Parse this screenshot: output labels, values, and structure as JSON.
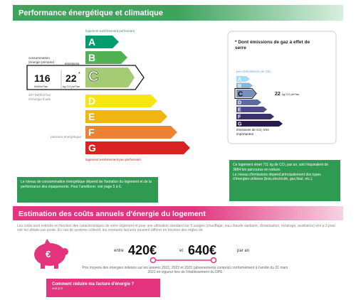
{
  "header": {
    "title": "Performance énergétique et climatique"
  },
  "energy_label": {
    "top_note": "logement extrêmement performant",
    "bottom_note": "logement extrêmement peu performant",
    "classes": [
      "A",
      "B",
      "C",
      "D",
      "E",
      "F",
      "G"
    ],
    "consumption_label": "consommation (énergie primaire)",
    "emissions_label": "émissions",
    "consumption_value": "116",
    "consumption_unit": "kWh/m²/an",
    "emissions_value": "22",
    "emissions_marker": "*",
    "emissions_unit": "kg CO₂/m²/an",
    "final_energy": "207 kWh/m²/an d'énergie finale",
    "sieve_label": "passoire énergétique"
  },
  "ghg_label": {
    "title": "* Dont émissions de gaz à effet de serre",
    "top_note": "peu d'émissions de CO₂",
    "classes": [
      "A",
      "B",
      "C",
      "D",
      "E",
      "F",
      "G"
    ],
    "value": "22",
    "unit": "kg CO₂/m²/an",
    "bottom_note": "émissions de CO₂ très importantes"
  },
  "notes": {
    "consumption": "Le niveau de consommation énergétique dépend de l'isolation du logement et de la performance des équipements. Pour l'améliorer, voir page 5 à 6.",
    "emissions": [
      "Ce logement émet 711 kg de CO₂ par an, soit l'équivalent de 3684 km parcourus en voiture.",
      "Le niveau d'émissions dépend principalement des types d'énergies utilisées (bois,électricité, gaz,fioul, etc.)."
    ]
  },
  "costs": {
    "title": "Estimation des coûts annuels d'énergie du logement",
    "intro": "Les coûts sont estimés en fonction des caractéristiques de votre logement et pour une utilisation standard sur 5 usages (chauffage, eau chaude sanitaire, climatisation, éclairage, auxiliaires) voir p.3 pour voir les détails par poste. En cas de système collectif, les montants facturés peuvent différer en fonction des règles de",
    "icon_symbol": "€",
    "between": "entre",
    "low": "420€",
    "and": "et",
    "high": "640€",
    "per_year": "par an",
    "price_note": "Prix moyens des énergies indexés sur les années 2021, 2022 et 2023 (abonnements compris) conformément à l'arrêté du 31 mars 2021 en vigueur lors de l'établissement du DPE",
    "cta_title": "Comment réduire ma facture d'énergie ?",
    "cta_link": "voir p.3"
  }
}
